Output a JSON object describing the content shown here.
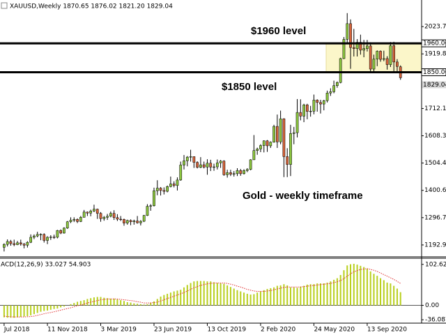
{
  "chart_data": [
    {
      "type": "candlestick",
      "header": "XAUUSD,Weekly  1870.65 1876.02 1821.20 1829.04",
      "categories": [
        "Jul 2018",
        null,
        null,
        null,
        null,
        null,
        null,
        null,
        null,
        null,
        null,
        null,
        null,
        "11 Nov 2018",
        null,
        null,
        null,
        null,
        null,
        null,
        null,
        null,
        null,
        null,
        null,
        null,
        null,
        null,
        null,
        "3 Mar 2019",
        null,
        null,
        null,
        null,
        null,
        null,
        null,
        null,
        null,
        null,
        null,
        null,
        null,
        null,
        null,
        "23 Jun 2019",
        null,
        null,
        null,
        null,
        null,
        null,
        null,
        null,
        null,
        null,
        null,
        null,
        null,
        null,
        null,
        "13 Oct 2019",
        null,
        null,
        null,
        null,
        null,
        null,
        null,
        null,
        null,
        null,
        null,
        null,
        null,
        null,
        null,
        "2 Feb 2020",
        null,
        null,
        null,
        null,
        null,
        null,
        null,
        null,
        null,
        null,
        null,
        null,
        null,
        null,
        null,
        "24 May 2020",
        null,
        null,
        null,
        null,
        null,
        null,
        null,
        null,
        null,
        null,
        null,
        null,
        null,
        null,
        null,
        "13 Sep 2020",
        null,
        null,
        null,
        null,
        null,
        null,
        null,
        null,
        null,
        null
      ],
      "open": [
        1184,
        1195,
        1206,
        1198,
        1194,
        1201,
        1196,
        1192,
        1203,
        1222,
        1227,
        1233,
        1233,
        1210,
        1222,
        1223,
        1222,
        1248,
        1238,
        1257,
        1281,
        1287,
        1290,
        1282,
        1298,
        1318,
        1314,
        1322,
        1329,
        1313,
        1293,
        1298,
        1302,
        1313,
        1297,
        1291,
        1290,
        1276,
        1286,
        1281,
        1284,
        1277,
        1283,
        1305,
        1340,
        1342,
        1399,
        1409,
        1400,
        1397,
        1415,
        1425,
        1419,
        1440,
        1497,
        1513,
        1527,
        1529,
        1507,
        1488,
        1498,
        1489,
        1504,
        1489,
        1490,
        1505,
        1512,
        1460,
        1468,
        1462,
        1464,
        1476,
        1464,
        1476,
        1480,
        1517,
        1552,
        1558,
        1571,
        1589,
        1570,
        1584,
        1644,
        1585,
        1673,
        1529,
        1499,
        1617,
        1620,
        1697,
        1683,
        1726,
        1701,
        1702,
        1744,
        1735,
        1729,
        1742,
        1771,
        1776,
        1799,
        1811,
        1902,
        1975,
        2035,
        1944,
        1940,
        1964,
        1934,
        1940,
        1950,
        1862,
        1900,
        1930,
        1899,
        1902,
        1879,
        1951,
        1889,
        1870.65
      ],
      "high": [
        1199,
        1214,
        1212,
        1213,
        1208,
        1213,
        1200,
        1207,
        1233,
        1233,
        1243,
        1237,
        1237,
        1226,
        1230,
        1232,
        1250,
        1252,
        1260,
        1284,
        1298,
        1298,
        1294,
        1303,
        1326,
        1320,
        1327,
        1346,
        1331,
        1318,
        1303,
        1311,
        1320,
        1325,
        1310,
        1303,
        1293,
        1289,
        1290,
        1289,
        1303,
        1287,
        1307,
        1348,
        1348,
        1411,
        1439,
        1413,
        1412,
        1419,
        1453,
        1435,
        1450,
        1510,
        1535,
        1531,
        1555,
        1530,
        1511,
        1527,
        1510,
        1519,
        1517,
        1502,
        1518,
        1516,
        1515,
        1479,
        1479,
        1474,
        1485,
        1482,
        1481,
        1485,
        1519,
        1611,
        1563,
        1576,
        1591,
        1592,
        1587,
        1650,
        1689,
        1704,
        1675,
        1561,
        1650,
        1642,
        1748,
        1747,
        1730,
        1730,
        1722,
        1765,
        1747,
        1745,
        1745,
        1780,
        1789,
        1818,
        1815,
        1905,
        1984,
        2075,
        2051,
        2015,
        1976,
        1993,
        1973,
        1973,
        1964,
        1917,
        1933,
        1933,
        1932,
        1911,
        1965,
        1966,
        1900,
        1876.02
      ],
      "low": [
        1168,
        1187,
        1190,
        1188,
        1192,
        1190,
        1180,
        1183,
        1200,
        1215,
        1222,
        1211,
        1202,
        1196,
        1212,
        1216,
        1218,
        1234,
        1236,
        1254,
        1276,
        1280,
        1276,
        1280,
        1297,
        1303,
        1302,
        1318,
        1292,
        1281,
        1285,
        1288,
        1298,
        1288,
        1284,
        1284,
        1266,
        1270,
        1268,
        1270,
        1274,
        1267,
        1280,
        1303,
        1323,
        1339,
        1382,
        1381,
        1385,
        1393,
        1412,
        1412,
        1400,
        1437,
        1480,
        1492,
        1510,
        1486,
        1484,
        1485,
        1484,
        1460,
        1474,
        1475,
        1480,
        1486,
        1456,
        1449,
        1455,
        1453,
        1455,
        1456,
        1461,
        1470,
        1477,
        1516,
        1536,
        1546,
        1545,
        1547,
        1562,
        1582,
        1562,
        1576,
        1451,
        1451,
        1455,
        1576,
        1602,
        1667,
        1660,
        1671,
        1681,
        1690,
        1700,
        1693,
        1705,
        1735,
        1760,
        1770,
        1791,
        1808,
        1900,
        1962,
        1863,
        1910,
        1910,
        1917,
        1907,
        1929,
        1848,
        1851,
        1873,
        1890,
        1892,
        1860,
        1870,
        1850,
        1850,
        1821.2
      ],
      "close": [
        1195,
        1206,
        1198,
        1194,
        1201,
        1196,
        1192,
        1203,
        1222,
        1227,
        1233,
        1233,
        1210,
        1222,
        1223,
        1222,
        1248,
        1238,
        1257,
        1281,
        1287,
        1290,
        1282,
        1298,
        1318,
        1314,
        1322,
        1329,
        1313,
        1293,
        1298,
        1302,
        1313,
        1297,
        1291,
        1290,
        1276,
        1286,
        1281,
        1284,
        1277,
        1283,
        1305,
        1340,
        1342,
        1399,
        1409,
        1400,
        1397,
        1415,
        1425,
        1419,
        1440,
        1497,
        1513,
        1527,
        1529,
        1507,
        1488,
        1498,
        1489,
        1504,
        1489,
        1490,
        1505,
        1512,
        1460,
        1468,
        1462,
        1464,
        1476,
        1464,
        1476,
        1480,
        1517,
        1552,
        1558,
        1571,
        1589,
        1570,
        1584,
        1644,
        1585,
        1673,
        1529,
        1499,
        1617,
        1620,
        1697,
        1683,
        1726,
        1701,
        1702,
        1744,
        1735,
        1729,
        1742,
        1771,
        1776,
        1799,
        1811,
        1902,
        1975,
        2035,
        1944,
        1940,
        1964,
        1934,
        1940,
        1950,
        1862,
        1900,
        1930,
        1899,
        1902,
        1879,
        1951,
        1889,
        1872,
        1829.04
      ],
      "up_color": "#8cc63f",
      "down_color": "#d4633a",
      "ylim": [
        1147.6,
        2124.9
      ],
      "yticks": [
        {
          "value": 2023.7,
          "label": "2023.70"
        },
        1919.85,
        1712.15,
        {
          "value": 1608.3,
          "label": "1608.30"
        },
        1504.45,
        {
          "value": 1400.6,
          "label": "1400.60"
        },
        1296.75,
        {
          "value": 1192.9,
          "label": "1192.90"
        }
      ],
      "levels": [
        {
          "value": 1960,
          "label": "1960.00",
          "text": "$1960 level"
        },
        {
          "value": 1850,
          "label": "1850.00",
          "text": "$1850 level"
        }
      ],
      "zone_color": "#fbf6c9",
      "annotation": "Gold - weekly timeframe"
    },
    {
      "type": "bar",
      "header": "ACD(12,26,9) 33.027 54.903",
      "series": [
        {
          "color": "#b8cf1c",
          "values": [
            -30,
            -31,
            -31,
            -31,
            -30,
            -29,
            -28,
            -27,
            -25,
            -22,
            -19,
            -16,
            -14,
            -13,
            -11,
            -9,
            -8,
            -5,
            -3,
            0,
            3,
            6,
            9,
            11,
            13,
            16,
            18,
            20,
            21,
            21,
            19,
            18,
            17,
            17,
            15,
            13,
            11,
            8,
            7,
            5,
            4,
            3,
            2,
            3,
            7,
            10,
            16,
            22,
            26,
            29,
            32,
            35,
            37,
            39,
            45,
            51,
            56,
            60,
            61,
            61,
            61,
            60,
            60,
            58,
            56,
            55,
            54,
            50,
            46,
            42,
            38,
            35,
            32,
            29,
            27,
            28,
            32,
            35,
            38,
            41,
            43,
            45,
            49,
            50,
            53,
            50,
            45,
            45,
            44,
            47,
            49,
            52,
            53,
            53,
            55,
            55,
            55,
            57,
            60,
            64,
            68,
            76,
            88,
            100,
            103,
            104,
            102,
            99,
            96,
            92,
            85,
            79,
            74,
            68,
            63,
            57,
            55,
            49,
            42,
            33.027
          ]
        },
        {
          "color": "#e03030",
          "style": "dotted",
          "values": [
            -27,
            -28,
            -28.5,
            -29,
            -29,
            -29,
            -29,
            -28.5,
            -28,
            -27,
            -25,
            -23,
            -21,
            -19,
            -18,
            -16,
            -14,
            -12,
            -10,
            -8,
            -6,
            -3.5,
            -1,
            1,
            3,
            6,
            8,
            10,
            12,
            14,
            15,
            16,
            16,
            16,
            16,
            15,
            14,
            13,
            12,
            11,
            9,
            8,
            6,
            6,
            6,
            7,
            8,
            11,
            14,
            17,
            20,
            23,
            26,
            29,
            32,
            36,
            40,
            44,
            47,
            50,
            52,
            54,
            55,
            56,
            56,
            56,
            56,
            55,
            53,
            51,
            48,
            46,
            43,
            40,
            38,
            36,
            35,
            35,
            35,
            36,
            37,
            39,
            41,
            43,
            45,
            46,
            46,
            46,
            46,
            46,
            47,
            48,
            49,
            50,
            51,
            52,
            53,
            54,
            55,
            57,
            59,
            62,
            67,
            73,
            79,
            84,
            87,
            90,
            91,
            92,
            90,
            88,
            85,
            81,
            77,
            73,
            69,
            65,
            60,
            54.903
          ]
        }
      ],
      "ylim": [
        -44.5,
        118
      ],
      "yticks": [
        102.62,
        {
          "value": 0,
          "label": "0.00"
        },
        -36.087
      ]
    }
  ]
}
